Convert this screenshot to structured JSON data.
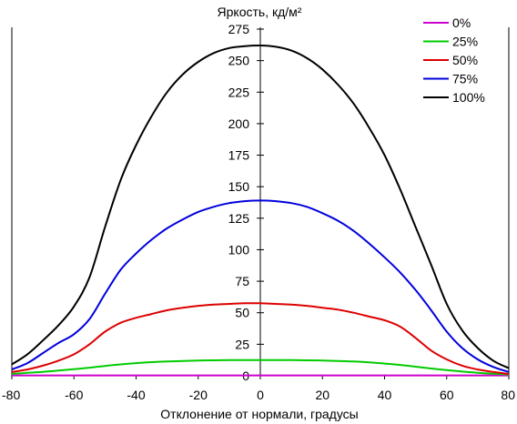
{
  "chart_data": {
    "type": "line",
    "title": "",
    "ylabel": "Яркость, кд/м²",
    "xlabel": "Отклонение от нормали, градусы",
    "xlim": [
      -80,
      80
    ],
    "ylim": [
      0,
      275
    ],
    "xticks": [
      -80,
      -60,
      -40,
      -20,
      0,
      20,
      40,
      60,
      80
    ],
    "yticks": [
      0,
      25,
      50,
      75,
      100,
      125,
      150,
      175,
      200,
      225,
      250,
      275
    ],
    "x_tick_labels": [
      "-80",
      "-60",
      "-40",
      "-20",
      "0",
      "20",
      "40",
      "60",
      "80"
    ],
    "y_tick_labels": [
      "0",
      "25",
      "50",
      "75",
      "100",
      "125",
      "150",
      "175",
      "200",
      "225",
      "250",
      "275"
    ],
    "grid": false,
    "legend_position": "top-right",
    "x": [
      -80,
      -75,
      -70,
      -65,
      -60,
      -55,
      -50,
      -45,
      -40,
      -35,
      -30,
      -25,
      -20,
      -15,
      -10,
      -5,
      0,
      5,
      10,
      15,
      20,
      25,
      30,
      35,
      40,
      45,
      50,
      55,
      60,
      65,
      70,
      75,
      80
    ],
    "series": [
      {
        "name": "0%",
        "color": "#cc00cc",
        "values": [
          0.3,
          0.3,
          0.3,
          0.3,
          0.3,
          0.3,
          0.3,
          0.3,
          0.3,
          0.3,
          0.3,
          0.3,
          0.3,
          0.3,
          0.3,
          0.3,
          0.3,
          0.3,
          0.3,
          0.3,
          0.3,
          0.3,
          0.3,
          0.3,
          0.3,
          0.3,
          0.3,
          0.3,
          0.3,
          0.3,
          0.3,
          0.3,
          0.3
        ]
      },
      {
        "name": "25%",
        "color": "#00cc00",
        "values": [
          1.5,
          2.3,
          3.1,
          4.1,
          5.2,
          6.4,
          7.8,
          9.0,
          10.0,
          10.8,
          11.4,
          11.8,
          12.1,
          12.3,
          12.4,
          12.5,
          12.5,
          12.5,
          12.4,
          12.3,
          12.1,
          11.8,
          11.3,
          10.6,
          9.7,
          8.6,
          7.2,
          5.8,
          4.5,
          3.3,
          2.4,
          1.6,
          1.1
        ]
      },
      {
        "name": "50%",
        "color": "#dd0000",
        "values": [
          3,
          5,
          8,
          12,
          17,
          25,
          35,
          42,
          46,
          49,
          52,
          54,
          55.5,
          56.5,
          57,
          57.5,
          57.5,
          57,
          56.5,
          55.5,
          54,
          52.5,
          50,
          47,
          44,
          39,
          30,
          20,
          13,
          8,
          5,
          3,
          1.5
        ]
      },
      {
        "name": "75%",
        "color": "#0000dd",
        "values": [
          5,
          10,
          18,
          26,
          33,
          45,
          65,
          84,
          97,
          108,
          117,
          124,
          130,
          134,
          137,
          138.5,
          139,
          138.5,
          137,
          134,
          129,
          123,
          115,
          105,
          94,
          82,
          68,
          52,
          35,
          22,
          13,
          7,
          3
        ]
      },
      {
        "name": "100%",
        "color": "#000000",
        "values": [
          9,
          17,
          28,
          40,
          55,
          78,
          118,
          155,
          183,
          206,
          225,
          239,
          249,
          256,
          260,
          261.5,
          262,
          261,
          258,
          252,
          243,
          231,
          216,
          197,
          175,
          148,
          118,
          88,
          57,
          36,
          22,
          12,
          6
        ]
      }
    ]
  }
}
